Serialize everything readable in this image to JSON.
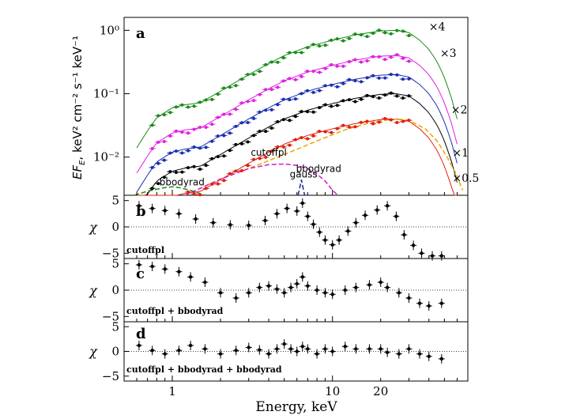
{
  "chart_data": [
    {
      "panel": "a",
      "type": "scatter",
      "panel_label": "a",
      "xlabel": "Energy, keV",
      "ylabel": "EF_E, keV² cm⁻² s⁻¹ keV⁻¹",
      "ylabel_parts": {
        "pre": "EF",
        "sub": "E",
        "post": ", keV² cm⁻² s⁻¹ keV⁻¹"
      },
      "xscale": "log",
      "yscale": "log",
      "xlim": [
        0.5,
        70
      ],
      "ylim": [
        0.0025,
        1.6
      ],
      "yticks": [
        {
          "value": 1.0,
          "label": "10⁰"
        },
        {
          "value": 0.1,
          "label": "10⁻¹"
        },
        {
          "value": 0.01,
          "label": "10⁻²"
        }
      ],
      "series": [
        {
          "name": "×4",
          "color": "#1a8a1a",
          "norm": 1.0,
          "label_at": [
            40,
            1.0
          ]
        },
        {
          "name": "×3",
          "color": "#e020e0",
          "norm": 0.4,
          "label_at": [
            47,
            0.38
          ]
        },
        {
          "name": "×2",
          "color": "#1a2fb0",
          "norm": 0.2,
          "label_at": [
            55,
            0.049
          ]
        },
        {
          "name": "×1",
          "color": "#000000",
          "norm": 0.1,
          "label_at": [
            56,
            0.0102
          ]
        },
        {
          "name": "×0.5",
          "color": "#e02010",
          "norm": 0.04,
          "label_at": [
            56,
            0.0041
          ]
        }
      ],
      "spectrum_shape": [
        [
          0.6,
          0.014
        ],
        [
          0.7,
          0.026
        ],
        [
          0.8,
          0.042
        ],
        [
          1.0,
          0.06
        ],
        [
          1.2,
          0.067
        ],
        [
          1.5,
          0.072
        ],
        [
          2,
          0.11
        ],
        [
          3,
          0.2
        ],
        [
          4,
          0.3
        ],
        [
          5,
          0.4
        ],
        [
          7,
          0.55
        ],
        [
          10,
          0.7
        ],
        [
          14,
          0.85
        ],
        [
          20,
          0.98
        ],
        [
          25,
          1.0
        ],
        [
          30,
          0.92
        ],
        [
          35,
          0.7
        ],
        [
          40,
          0.5
        ],
        [
          45,
          0.32
        ],
        [
          50,
          0.18
        ],
        [
          55,
          0.09
        ],
        [
          60,
          0.04
        ]
      ],
      "components": [
        {
          "name": "cutoffpl",
          "color": "#e8a800",
          "label_at": [
            4.0,
            0.0105
          ],
          "points": [
            [
              1.2,
              0.0025
            ],
            [
              2,
              0.0045
            ],
            [
              3,
              0.0066
            ],
            [
              5,
              0.011
            ],
            [
              8,
              0.018
            ],
            [
              12,
              0.027
            ],
            [
              18,
              0.036
            ],
            [
              25,
              0.04
            ],
            [
              30,
              0.038
            ],
            [
              38,
              0.028
            ],
            [
              45,
              0.018
            ],
            [
              52,
              0.01
            ],
            [
              58,
              0.006
            ],
            [
              65,
              0.003
            ]
          ]
        },
        {
          "name": "gauss",
          "color": "#1a2a8a",
          "label_at": [
            6.6,
            0.0048
          ],
          "points": [
            [
              6.1,
              0.0025
            ],
            [
              6.3,
              0.0036
            ],
            [
              6.4,
              0.0044
            ],
            [
              6.5,
              0.0036
            ],
            [
              6.7,
              0.0025
            ]
          ]
        },
        {
          "name": "bbodyrad",
          "color": "#cc20cc",
          "label_at": [
            8.2,
            0.0058
          ],
          "points": [
            [
              1.2,
              0.0025
            ],
            [
              2,
              0.0045
            ],
            [
              3,
              0.0066
            ],
            [
              4,
              0.0076
            ],
            [
              5,
              0.0078
            ],
            [
              6,
              0.0074
            ],
            [
              7,
              0.0066
            ],
            [
              8,
              0.0054
            ],
            [
              9,
              0.0042
            ],
            [
              10,
              0.003
            ],
            [
              10.8,
              0.0025
            ]
          ]
        },
        {
          "name": "bbodyrad",
          "color": "#1a8a1a",
          "label_at": [
            1.15,
            0.0036
          ],
          "points": [
            [
              0.58,
              0.0025
            ],
            [
              0.7,
              0.0029
            ],
            [
              0.9,
              0.0033
            ],
            [
              1.0,
              0.0034
            ],
            [
              1.1,
              0.0033
            ],
            [
              1.3,
              0.003
            ],
            [
              1.6,
              0.0025
            ]
          ]
        }
      ]
    },
    {
      "panel": "b",
      "type": "scatter",
      "panel_label": "b",
      "model_label": "cutoffpl",
      "ylabel": "χ",
      "ylim": [
        -6,
        6
      ],
      "yticks": [
        -5,
        0,
        5
      ],
      "xlim": [
        0.5,
        70
      ],
      "residual_points": [
        [
          0.62,
          4
        ],
        [
          0.75,
          3.5
        ],
        [
          0.9,
          3.1
        ],
        [
          1.1,
          2.5
        ],
        [
          1.4,
          1.5
        ],
        [
          1.8,
          0.8
        ],
        [
          2.3,
          0.4
        ],
        [
          3,
          0.3
        ],
        [
          3.8,
          1.2
        ],
        [
          4.5,
          2.5
        ],
        [
          5.2,
          3.5
        ],
        [
          6,
          3
        ],
        [
          6.5,
          4.5
        ],
        [
          7,
          2
        ],
        [
          7.6,
          0.5
        ],
        [
          8.3,
          -1
        ],
        [
          9,
          -2.5
        ],
        [
          10,
          -3.4
        ],
        [
          11,
          -2.5
        ],
        [
          12.5,
          -0.8
        ],
        [
          14,
          0.8
        ],
        [
          16,
          2.2
        ],
        [
          19,
          3.2
        ],
        [
          22,
          4
        ],
        [
          25,
          2
        ],
        [
          28,
          -1.5
        ],
        [
          32,
          -3.5
        ],
        [
          36,
          -5
        ],
        [
          42,
          -5.5
        ],
        [
          48,
          -5.5
        ]
      ]
    },
    {
      "panel": "c",
      "type": "scatter",
      "panel_label": "c",
      "model_label": "cutoffpl + bbodyrad",
      "ylabel": "χ",
      "ylim": [
        -6,
        6
      ],
      "yticks": [
        -5,
        0,
        5
      ],
      "xlim": [
        0.5,
        70
      ],
      "residual_points": [
        [
          0.62,
          4.8
        ],
        [
          0.75,
          4.5
        ],
        [
          0.9,
          4
        ],
        [
          1.1,
          3.5
        ],
        [
          1.3,
          2.5
        ],
        [
          1.6,
          1.5
        ],
        [
          2,
          -0.5
        ],
        [
          2.5,
          -1.5
        ],
        [
          3,
          -0.5
        ],
        [
          3.5,
          0.5
        ],
        [
          4,
          0.8
        ],
        [
          4.5,
          0.2
        ],
        [
          5,
          -0.5
        ],
        [
          5.5,
          0.5
        ],
        [
          6,
          1.2
        ],
        [
          6.5,
          2.5
        ],
        [
          7,
          0.8
        ],
        [
          8,
          0
        ],
        [
          9,
          -0.5
        ],
        [
          10,
          -0.8
        ],
        [
          12,
          0
        ],
        [
          14,
          0.5
        ],
        [
          17,
          1
        ],
        [
          20,
          1.5
        ],
        [
          22,
          0.5
        ],
        [
          26,
          -0.5
        ],
        [
          30,
          -1.5
        ],
        [
          35,
          -2.5
        ],
        [
          40,
          -3
        ],
        [
          48,
          -2.5
        ]
      ]
    },
    {
      "panel": "d",
      "type": "scatter",
      "panel_label": "d",
      "model_label": "cutoffpl + bbodyrad + bbodyrad",
      "ylabel": "χ",
      "ylim": [
        -6,
        6
      ],
      "yticks": [
        -5,
        0,
        5
      ],
      "xlim": [
        0.5,
        70
      ],
      "xticks": [
        {
          "value": 1,
          "label": "1"
        },
        {
          "value": 10,
          "label": "10"
        },
        {
          "value": 20,
          "label": "20"
        }
      ],
      "xlabel": "Energy, keV",
      "residual_points": [
        [
          0.62,
          1.2
        ],
        [
          0.75,
          0.2
        ],
        [
          0.9,
          -0.5
        ],
        [
          1.1,
          0.2
        ],
        [
          1.3,
          1.2
        ],
        [
          1.6,
          0.5
        ],
        [
          2,
          -0.5
        ],
        [
          2.5,
          0.2
        ],
        [
          3,
          0.8
        ],
        [
          3.5,
          0.3
        ],
        [
          4,
          -0.5
        ],
        [
          4.5,
          0.5
        ],
        [
          5,
          1.5
        ],
        [
          5.5,
          0.5
        ],
        [
          6,
          0
        ],
        [
          6.5,
          1
        ],
        [
          7,
          0.5
        ],
        [
          8,
          -0.5
        ],
        [
          9,
          0.5
        ],
        [
          10,
          0
        ],
        [
          12,
          1
        ],
        [
          14,
          0.5
        ],
        [
          17,
          0.5
        ],
        [
          20,
          0.5
        ],
        [
          22,
          -0.2
        ],
        [
          26,
          -0.5
        ],
        [
          30,
          0.5
        ],
        [
          35,
          -0.5
        ],
        [
          40,
          -1
        ],
        [
          48,
          -1.5
        ]
      ]
    }
  ]
}
